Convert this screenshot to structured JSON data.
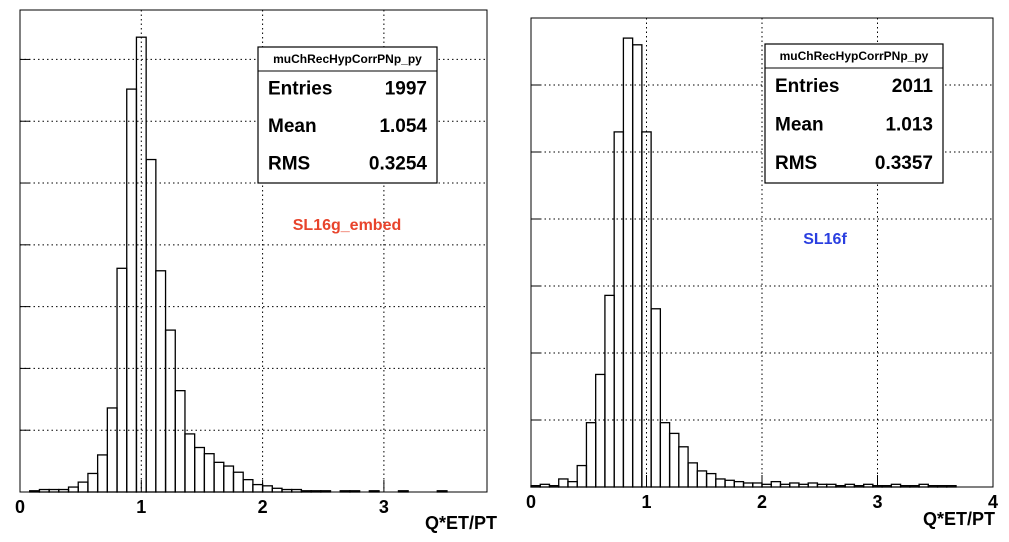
{
  "chart_data": [
    {
      "type": "histogram",
      "bins": [
        0,
        0.08,
        0.16,
        0.24,
        0.32,
        0.4,
        0.48,
        0.56,
        0.64,
        0.72,
        0.8,
        0.88,
        0.96,
        1.04,
        1.12,
        1.2,
        1.28,
        1.36,
        1.44,
        1.52,
        1.6,
        1.68,
        1.76,
        1.84,
        1.92,
        2,
        2.08,
        2.16,
        2.24,
        2.32,
        2.4,
        2.48,
        2.56,
        2.64,
        2.72,
        2.8,
        2.88,
        2.96,
        3.04,
        3.12,
        3.2,
        3.28,
        3.36,
        3.44,
        3.52,
        3.6,
        3.68,
        3.76,
        3.84
      ],
      "counts": [
        0,
        1,
        2,
        2,
        2,
        4,
        8,
        15,
        30,
        68,
        181,
        326,
        368,
        269,
        179,
        131,
        82,
        47,
        36,
        31,
        24,
        21,
        16,
        10,
        6,
        5,
        3,
        2,
        2,
        1,
        1,
        1,
        0,
        1,
        1,
        0,
        1,
        0,
        0,
        1,
        0,
        0,
        0,
        1,
        0,
        0,
        0,
        0
      ],
      "color": "#000000",
      "xlim": [
        0,
        3.85
      ],
      "xticks": [
        0,
        1,
        2,
        3
      ],
      "ylim": [
        0,
        390
      ],
      "yticks": [
        50,
        100,
        150,
        200,
        250,
        300,
        350
      ],
      "grid": true,
      "x_label": "Q*ET/PT",
      "stats": {
        "title": "muChRecHypCorrPNp_py",
        "rows": [
          [
            "Entries",
            1997
          ],
          [
            "Mean",
            1.054
          ],
          [
            "RMS",
            0.3254
          ]
        ]
      },
      "annotation": {
        "text": "SL16g_embed",
        "color": "#e8442c"
      }
    },
    {
      "type": "histogram",
      "bins": [
        0,
        0.08,
        0.16,
        0.24,
        0.32,
        0.4,
        0.48,
        0.56,
        0.64,
        0.72,
        0.8,
        0.88,
        0.96,
        1.04,
        1.12,
        1.2,
        1.28,
        1.36,
        1.44,
        1.52,
        1.6,
        1.68,
        1.76,
        1.84,
        1.92,
        2,
        2.08,
        2.16,
        2.24,
        2.32,
        2.4,
        2.48,
        2.56,
        2.64,
        2.72,
        2.8,
        2.88,
        2.96,
        3.04,
        3.12,
        3.2,
        3.28,
        3.36,
        3.44,
        3.52,
        3.6,
        3.68,
        3.76,
        3.84,
        3.92,
        4
      ],
      "counts": [
        1,
        2,
        1,
        6,
        4,
        16,
        48,
        84,
        143,
        265,
        335,
        330,
        265,
        133,
        48,
        40,
        30,
        18,
        12,
        10,
        6,
        5,
        4,
        3,
        3,
        2,
        4,
        2,
        3,
        2,
        3,
        2,
        2,
        1,
        2,
        1,
        2,
        1,
        1,
        2,
        1,
        1,
        2,
        1,
        1,
        1,
        0,
        0,
        0,
        0
      ],
      "color": "#000000",
      "xlim": [
        0,
        4
      ],
      "xticks": [
        0,
        1,
        2,
        3,
        4
      ],
      "ylim": [
        0,
        350
      ],
      "yticks": [
        50,
        100,
        150,
        200,
        250,
        300
      ],
      "grid": true,
      "x_label": "Q*ET/PT",
      "stats": {
        "title": "muChRecHypCorrPNp_py",
        "rows": [
          [
            "Entries",
            2011
          ],
          [
            "Mean",
            1.013
          ],
          [
            "RMS",
            0.3357
          ]
        ]
      },
      "annotation": {
        "text": "SL16f",
        "color": "#2a3fe0"
      }
    }
  ]
}
